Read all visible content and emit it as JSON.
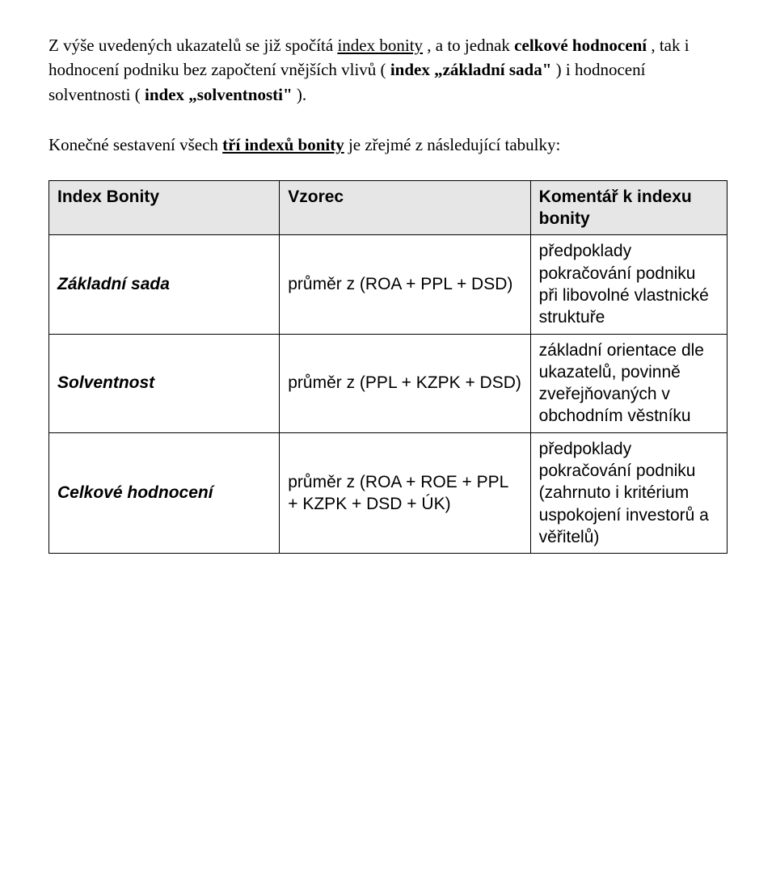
{
  "intro": {
    "p1": "Z výše uvedených ukazatelů se již spočítá ",
    "p2": "index bonity",
    "p3": ", a to jednak ",
    "p4": "celkové hodnocení",
    "p5": ", tak i hodnocení podniku bez započtení vnějších vlivů (",
    "p6": "index „základní sada\"",
    "p7": ") i hodnocení solventnosti (",
    "p8": "index „solventnosti\"",
    "p9": ")."
  },
  "subhead": {
    "s1": "Konečné sestavení všech ",
    "s2": "tří indexů bonity",
    "s3": " je zřejmé z následující tabulky:"
  },
  "table": {
    "head": {
      "c1": "Index Bonity",
      "c2": "Vzorec",
      "c3": "Komentář k indexu bonity"
    },
    "rows": [
      {
        "name": "Základní sada",
        "formula": "průměr z  (ROA + PPL + DSD)",
        "comment": "předpoklady pokračování podniku při libovolné vlastnické struktuře"
      },
      {
        "name": "Solventnost",
        "formula": "průměr z  (PPL + KZPK + DSD)",
        "comment": "základní orientace dle ukazatelů, povinně zveřejňovaných v obchodním věstníku"
      },
      {
        "name": "Celkové hodnocení",
        "formula": "průměr z  (ROA + ROE + PPL + KZPK + DSD + ÚK)",
        "comment": "předpoklady pokračování podniku (zahrnuto i kritérium uspokojení investorů a věřitelů)"
      }
    ]
  },
  "style": {
    "page_bg": "#ffffff",
    "text_color": "#000000",
    "header_bg": "#e6e6e6",
    "border_color": "#000000",
    "serif_font": "Times New Roman",
    "sans_font": "Arial",
    "body_fontsize_pt": 16,
    "table_fontsize_pt": 16
  }
}
